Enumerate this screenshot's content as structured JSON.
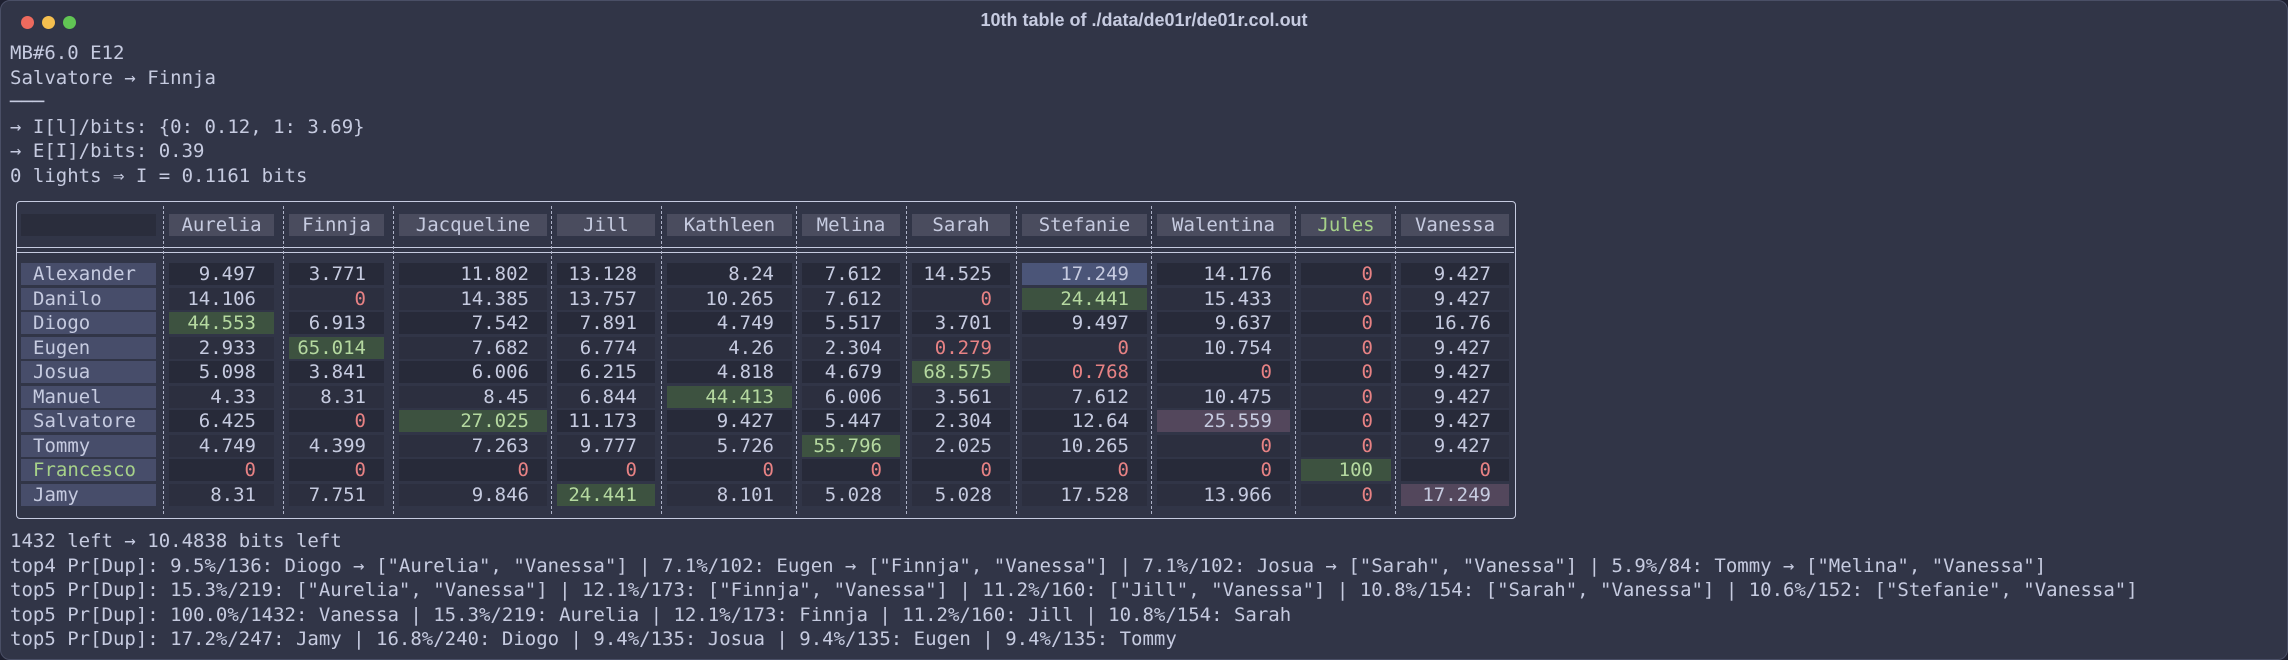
{
  "window": {
    "title": "10th table of ./data/de01r/de01r.col.out"
  },
  "header_lines": [
    "MB#6.0 E12",
    "Salvatore → Finnja",
    "───",
    "→ I[l]/bits: {0: 0.12, 1: 3.69}",
    "→ E[I]/bits: 0.39",
    "0 lights ⇒ I = 0.1161 bits"
  ],
  "table": {
    "columns": [
      {
        "name": "Aurelia"
      },
      {
        "name": "Finnja"
      },
      {
        "name": "Jacqueline"
      },
      {
        "name": "Jill"
      },
      {
        "name": "Kathleen"
      },
      {
        "name": "Melina"
      },
      {
        "name": "Sarah"
      },
      {
        "name": "Stefanie"
      },
      {
        "name": "Walentina"
      },
      {
        "name": "Jules",
        "color": "#a6d189"
      },
      {
        "name": "Vanessa"
      }
    ],
    "rows": [
      {
        "name": "Alexander",
        "values": [
          9.497,
          3.771,
          11.802,
          13.128,
          8.24,
          7.612,
          14.525,
          17.249,
          14.176,
          0,
          9.427
        ],
        "highlight": [
          null,
          null,
          null,
          null,
          null,
          null,
          null,
          "#4b5578",
          null,
          null,
          null
        ]
      },
      {
        "name": "Danilo",
        "values": [
          14.106,
          0,
          14.385,
          13.757,
          10.265,
          7.612,
          0,
          24.441,
          15.433,
          0,
          9.427
        ],
        "highlight": [
          null,
          null,
          null,
          null,
          null,
          null,
          null,
          "#3d5240",
          null,
          null,
          null
        ]
      },
      {
        "name": "Diogo",
        "values": [
          44.553,
          6.913,
          7.542,
          7.891,
          4.749,
          5.517,
          3.701,
          9.497,
          9.637,
          0,
          16.76
        ],
        "highlight": [
          "#3d5240",
          null,
          null,
          null,
          null,
          null,
          null,
          null,
          null,
          null,
          null
        ]
      },
      {
        "name": "Eugen",
        "values": [
          2.933,
          65.014,
          7.682,
          6.774,
          4.26,
          2.304,
          0.279,
          0,
          10.754,
          0,
          9.427
        ],
        "highlight": [
          null,
          "#3d5240",
          null,
          null,
          null,
          null,
          null,
          null,
          null,
          null,
          null
        ]
      },
      {
        "name": "Josua",
        "values": [
          5.098,
          3.841,
          6.006,
          6.215,
          4.818,
          4.679,
          68.575,
          0.768,
          0,
          0,
          9.427
        ],
        "highlight": [
          null,
          null,
          null,
          null,
          null,
          null,
          "#3d5240",
          null,
          null,
          null,
          null
        ]
      },
      {
        "name": "Manuel",
        "values": [
          4.33,
          8.31,
          8.45,
          6.844,
          44.413,
          6.006,
          3.561,
          7.612,
          10.475,
          0,
          9.427
        ],
        "highlight": [
          null,
          null,
          null,
          null,
          "#3d5240",
          null,
          null,
          null,
          null,
          null,
          null
        ]
      },
      {
        "name": "Salvatore",
        "values": [
          6.425,
          0,
          27.025,
          11.173,
          9.427,
          5.447,
          2.304,
          12.64,
          25.559,
          0,
          9.427
        ],
        "highlight": [
          null,
          null,
          "#3d5240",
          null,
          null,
          null,
          null,
          null,
          "#53475c",
          null,
          null
        ]
      },
      {
        "name": "Tommy",
        "values": [
          4.749,
          4.399,
          7.263,
          9.777,
          5.726,
          55.796,
          2.025,
          10.265,
          0,
          0,
          9.427
        ],
        "highlight": [
          null,
          null,
          null,
          null,
          null,
          "#3d5240",
          null,
          null,
          null,
          null,
          null
        ]
      },
      {
        "name": "Francesco",
        "name_color": "#a6d189",
        "values": [
          0,
          0,
          0,
          0,
          0,
          0,
          0,
          0,
          0,
          100,
          0
        ],
        "highlight": [
          null,
          null,
          null,
          null,
          null,
          null,
          null,
          null,
          null,
          "#3d5240",
          null
        ]
      },
      {
        "name": "Jamy",
        "values": [
          8.31,
          7.751,
          9.846,
          24.441,
          8.101,
          5.028,
          5.028,
          17.528,
          13.966,
          0,
          17.249
        ],
        "highlight": [
          null,
          null,
          null,
          "#3d5240",
          null,
          null,
          null,
          null,
          null,
          null,
          "#53475c"
        ]
      }
    ]
  },
  "footer_lines": [
    "1432 left → 10.4838 bits left",
    "top4 Pr[Dup]: 9.5%/136: Diogo → [\"Aurelia\", \"Vanessa\"] | 7.1%/102: Eugen → [\"Finnja\", \"Vanessa\"] | 7.1%/102: Josua → [\"Sarah\", \"Vanessa\"] | 5.9%/84: Tommy → [\"Melina\", \"Vanessa\"]",
    "top5 Pr[Dup]: 15.3%/219: [\"Aurelia\", \"Vanessa\"] | 12.1%/173: [\"Finnja\", \"Vanessa\"] | 11.2%/160: [\"Jill\", \"Vanessa\"] | 10.8%/154: [\"Sarah\", \"Vanessa\"] | 10.6%/152: [\"Stefanie\", \"Vanessa\"]",
    "top5 Pr[Dup]: 100.0%/1432: Vanessa | 15.3%/219: Aurelia | 12.1%/173: Finnja | 11.2%/160: Jill | 10.8%/154: Sarah",
    "top5 Pr[Dup]: 17.2%/247: Jamy | 16.8%/240: Diogo | 9.4%/135: Josua | 9.4%/135: Eugen | 9.4%/135: Tommy"
  ]
}
